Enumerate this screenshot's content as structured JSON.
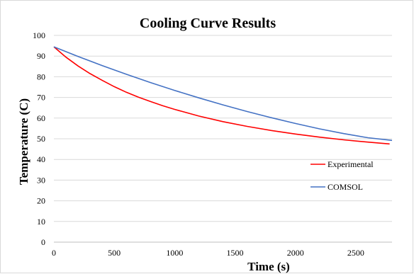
{
  "chart_data": {
    "type": "line",
    "title": "Cooling Curve Results",
    "xlabel": "Time (s)",
    "ylabel": "Temperature (C)",
    "xlim": [
      0,
      2800
    ],
    "ylim": [
      0,
      100
    ],
    "x_ticks": [
      0,
      500,
      1000,
      1500,
      2000,
      2500
    ],
    "y_ticks": [
      0,
      10,
      20,
      30,
      40,
      50,
      60,
      70,
      80,
      90,
      100
    ],
    "grid": true,
    "legend_position": "right",
    "series": [
      {
        "name": "Experimental",
        "color": "#ff0000",
        "x": [
          0,
          100,
          200,
          300,
          400,
          500,
          600,
          700,
          800,
          900,
          1000,
          1200,
          1400,
          1600,
          1800,
          2000,
          2200,
          2400,
          2600,
          2780
        ],
        "y": [
          94.5,
          89.5,
          85.2,
          81.5,
          78.3,
          75.2,
          72.5,
          70.1,
          68,
          66,
          64.2,
          61,
          58.3,
          56,
          54,
          52.3,
          50.8,
          49.5,
          48.4,
          47.5
        ]
      },
      {
        "name": "COMSOL",
        "color": "#4472c4",
        "x": [
          0,
          200,
          400,
          600,
          800,
          1000,
          1200,
          1400,
          1600,
          1800,
          2000,
          2200,
          2400,
          2600,
          2800
        ],
        "y": [
          94.5,
          89.8,
          85.4,
          81.2,
          77.2,
          73.4,
          69.8,
          66.4,
          63.2,
          60.2,
          57.4,
          54.8,
          52.5,
          50.5,
          49.2
        ]
      }
    ]
  }
}
